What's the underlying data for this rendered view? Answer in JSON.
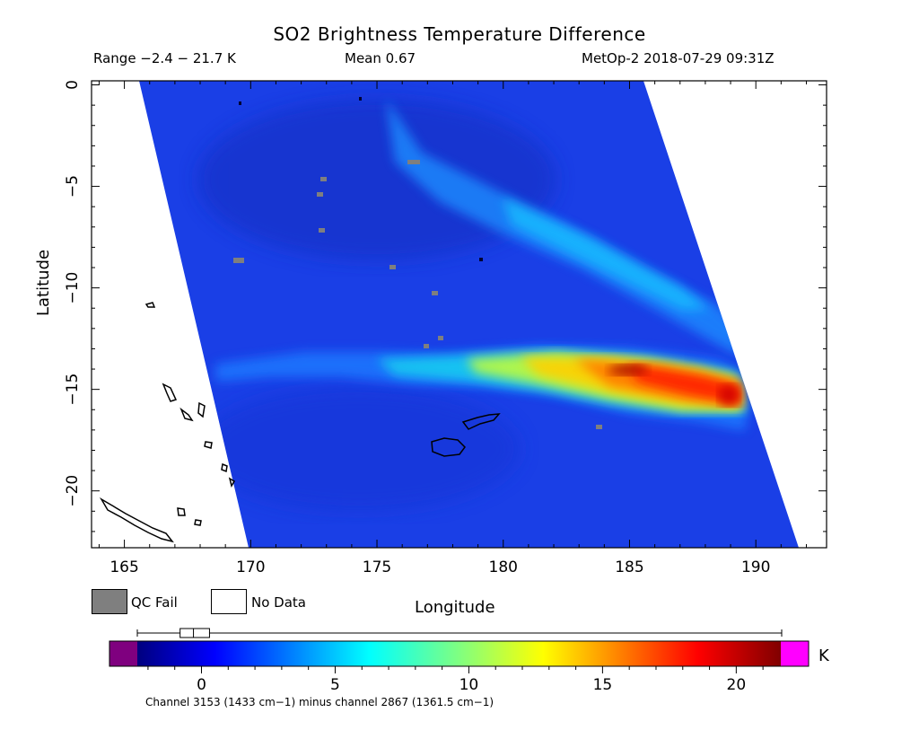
{
  "header": {
    "title": "SO2 Brightness Temperature Difference",
    "range_text": "Range −2.4 − 21.7 K",
    "mean_text": "Mean 0.67",
    "satellite_text": "MetOp-2 2018-07-29 09:31Z"
  },
  "map": {
    "xlabel": "Longitude",
    "ylabel": "Latitude",
    "x_range": [
      163.7,
      192.8
    ],
    "y_range": [
      -22.8,
      0.2
    ],
    "x_ticks": [
      165,
      170,
      175,
      180,
      185,
      190
    ],
    "y_ticks": [
      0,
      -5,
      -10,
      -15,
      -20
    ],
    "swath_color_background": "#1a3fe6",
    "coastline_color": "#000000",
    "plume": {
      "description_value_peak_K": 21.7,
      "peak_location": [
        189.2,
        -15.0
      ]
    }
  },
  "legend": {
    "qc_fail_label": "QC Fail",
    "qc_fail_color": "#7f7f7f",
    "no_data_label": "No Data",
    "no_data_color": "#ffffff"
  },
  "colorbar": {
    "range": [
      -2.4,
      21.7
    ],
    "ticks": [
      0,
      5,
      10,
      15,
      20
    ],
    "unit": "K",
    "under_color": "#7f007f",
    "over_color": "#ff00ff",
    "caption": "Channel 3153 (1433 cm−1) minus channel 2867 (1361.5 cm−1)",
    "boxplot": {
      "whisker_low": -2.4,
      "q1": -0.8,
      "median": -0.3,
      "q3": 0.3,
      "whisker_high": 21.7
    }
  }
}
